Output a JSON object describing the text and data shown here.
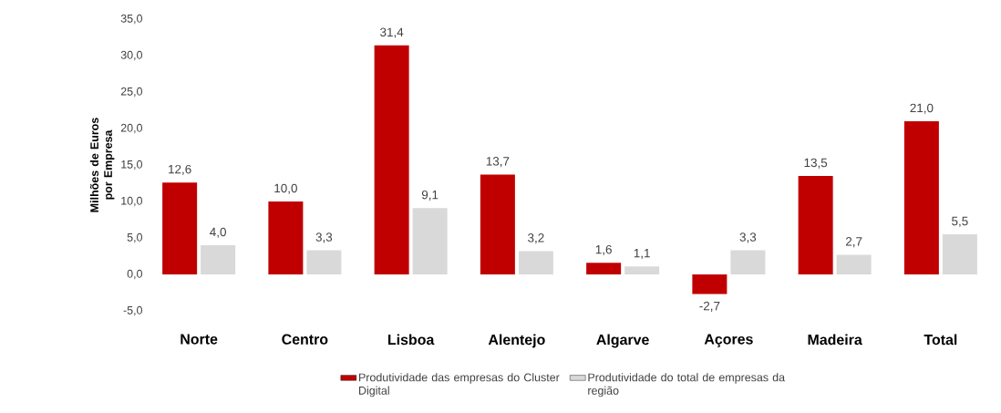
{
  "chart_data": {
    "type": "bar",
    "ylabel": "Milhões de Euros por Empresa",
    "categories": [
      "Norte",
      "Centro",
      "Lisboa",
      "Alentejo",
      "Algarve",
      "Açores",
      "Madeira",
      "Total"
    ],
    "series": [
      {
        "name": "Produtividade das empresas do Cluster Digital",
        "color": "#c00000",
        "values": [
          12.6,
          10.0,
          31.4,
          13.7,
          1.6,
          -2.7,
          13.5,
          21.0
        ],
        "value_labels": [
          "12,6",
          "10,0",
          "31,4",
          "13,7",
          "1,6",
          "-2,7",
          "13,5",
          "21,0"
        ]
      },
      {
        "name": "Produtividade do total de empresas da região",
        "color": "#d9d9d9",
        "values": [
          4.0,
          3.3,
          9.1,
          3.2,
          1.1,
          3.3,
          2.7,
          5.5
        ],
        "value_labels": [
          "4,0",
          "3,3",
          "9,1",
          "3,2",
          "1,1",
          "3,3",
          "2,7",
          "5,5"
        ]
      }
    ],
    "ylim": [
      -5,
      35
    ],
    "yticks": [
      {
        "value": -5,
        "label": "-5,0"
      },
      {
        "value": 0,
        "label": "0,0"
      },
      {
        "value": 5,
        "label": "5,0"
      },
      {
        "value": 10,
        "label": "10,0"
      },
      {
        "value": 15,
        "label": "15,0"
      },
      {
        "value": 20,
        "label": "20,0"
      },
      {
        "value": 25,
        "label": "25,0"
      },
      {
        "value": 30,
        "label": "30,0"
      },
      {
        "value": 35,
        "label": "35,0"
      }
    ],
    "grid": false,
    "legend": "bottom"
  }
}
